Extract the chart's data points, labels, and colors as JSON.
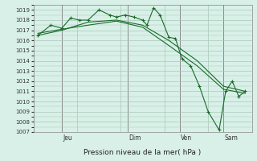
{
  "background_color": "#d8f0e8",
  "grid_color": "#a8c8b8",
  "line_color": "#1a6b2a",
  "marker_color": "#1a6b2a",
  "xlabel": "Pression niveau de la mer( hPa )",
  "ylim": [
    1007,
    1019.5
  ],
  "yticks": [
    1007,
    1008,
    1009,
    1010,
    1011,
    1012,
    1013,
    1014,
    1015,
    1016,
    1017,
    1018,
    1019
  ],
  "day_labels": [
    "Jeu",
    "Dim",
    "Ven",
    "Sam"
  ],
  "day_positions": [
    0.13,
    0.43,
    0.67,
    0.87
  ],
  "series1_x": [
    0.02,
    0.08,
    0.13,
    0.17,
    0.21,
    0.25,
    0.3,
    0.35,
    0.38,
    0.42,
    0.46,
    0.5,
    0.52,
    0.55,
    0.58,
    0.62,
    0.65,
    0.68,
    0.72,
    0.76,
    0.8,
    0.85,
    0.88,
    0.91,
    0.94,
    0.97
  ],
  "series1_y": [
    1016.5,
    1017.5,
    1017.2,
    1018.2,
    1018.0,
    1018.0,
    1019.0,
    1018.5,
    1018.3,
    1018.5,
    1018.3,
    1018.0,
    1017.5,
    1019.2,
    1018.5,
    1016.3,
    1016.2,
    1014.2,
    1013.5,
    1011.5,
    1009.0,
    1007.2,
    1011.0,
    1012.0,
    1010.5,
    1011.0
  ],
  "series2_x": [
    0.02,
    0.13,
    0.25,
    0.38,
    0.5,
    0.62,
    0.75,
    0.87,
    0.97
  ],
  "series2_y": [
    1016.5,
    1017.0,
    1017.8,
    1018.0,
    1017.5,
    1016.0,
    1014.0,
    1011.5,
    1011.0
  ],
  "series3_x": [
    0.02,
    0.13,
    0.25,
    0.38,
    0.5,
    0.62,
    0.75,
    0.87,
    0.97
  ],
  "series3_y": [
    1016.7,
    1017.1,
    1017.5,
    1017.9,
    1017.3,
    1015.5,
    1013.5,
    1011.2,
    1010.8
  ]
}
